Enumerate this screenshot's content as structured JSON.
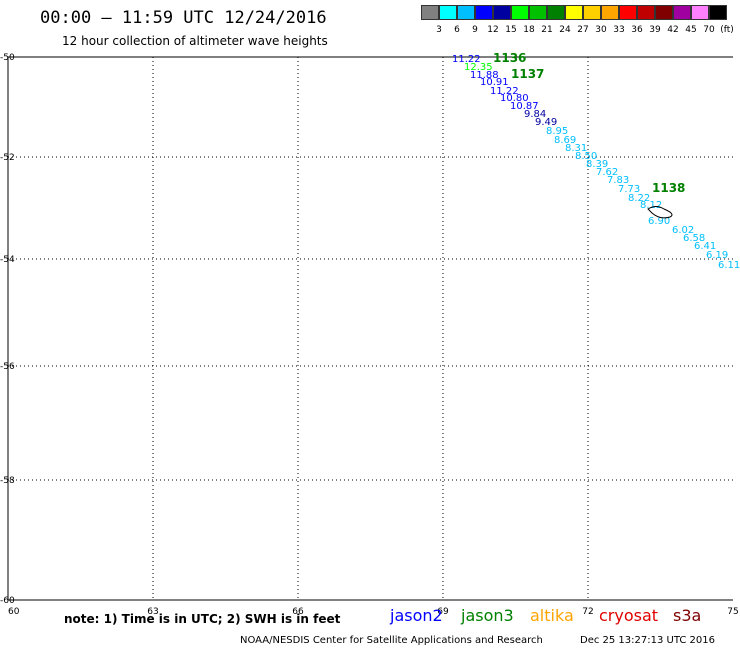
{
  "header": {
    "title": "00:00 – 11:59 UTC 12/24/2016",
    "subtitle": "12 hour collection of altimeter wave heights"
  },
  "scale": {
    "colors": [
      "#808080",
      "#00ffff",
      "#00bfff",
      "#0000ff",
      "#0000a0",
      "#00ff00",
      "#00c000",
      "#008000",
      "#ffff00",
      "#ffd000",
      "#ffa500",
      "#ff0000",
      "#c00000",
      "#800000",
      "#a000a0",
      "#ff80ff",
      "#000000"
    ],
    "labels": [
      "3",
      "6",
      "9",
      "12",
      "15",
      "18",
      "21",
      "24",
      "27",
      "30",
      "33",
      "36",
      "39",
      "42",
      "45",
      "70",
      "(ft)"
    ]
  },
  "axes": {
    "lon_labels": [
      "60",
      "63",
      "66",
      "69",
      "72",
      "75"
    ],
    "lat_labels": [
      "-50",
      "-52",
      "-54",
      "-56",
      "-58",
      "-60"
    ]
  },
  "tracks": {
    "pass_labels": [
      {
        "text": "1136",
        "color": "#008000"
      },
      {
        "text": "1137",
        "color": "#008000"
      },
      {
        "text": "1138",
        "color": "#008000"
      }
    ],
    "points": [
      {
        "v": "11.22",
        "c": "#0000ff"
      },
      {
        "v": "12.35",
        "c": "#00ff00"
      },
      {
        "v": "11.88",
        "c": "#0000ff"
      },
      {
        "v": "10.91",
        "c": "#0000ff"
      },
      {
        "v": "11.22",
        "c": "#0000ff"
      },
      {
        "v": "10.80",
        "c": "#0000ff"
      },
      {
        "v": "10.87",
        "c": "#0000ff"
      },
      {
        "v": "9.84",
        "c": "#0000a0"
      },
      {
        "v": "9.49",
        "c": "#0000a0"
      },
      {
        "v": "8.95",
        "c": "#00bfff"
      },
      {
        "v": "8.69",
        "c": "#00bfff"
      },
      {
        "v": "8.31",
        "c": "#00bfff"
      },
      {
        "v": "8.50",
        "c": "#00bfff"
      },
      {
        "v": "8.39",
        "c": "#00bfff"
      },
      {
        "v": "7.62",
        "c": "#00bfff"
      },
      {
        "v": "7.83",
        "c": "#00bfff"
      },
      {
        "v": "7.73",
        "c": "#00bfff"
      },
      {
        "v": "8.22",
        "c": "#00bfff"
      },
      {
        "v": "8.12",
        "c": "#00bfff"
      },
      {
        "v": "6.90",
        "c": "#00bfff"
      },
      {
        "v": "6.02",
        "c": "#00bfff"
      },
      {
        "v": "6.58",
        "c": "#00bfff"
      },
      {
        "v": "6.41",
        "c": "#00bfff"
      },
      {
        "v": "6.19",
        "c": "#00bfff"
      },
      {
        "v": "6.11",
        "c": "#00bfff"
      }
    ]
  },
  "footer": {
    "note": "note: 1) Time is in UTC; 2) SWH is in feet",
    "satellites": [
      {
        "name": "jason2",
        "color": "#0000ff"
      },
      {
        "name": "jason3",
        "color": "#008000"
      },
      {
        "name": "altika",
        "color": "#ffa500"
      },
      {
        "name": "cryosat",
        "color": "#e00000"
      },
      {
        "name": "s3a",
        "color": "#800000"
      }
    ],
    "credit": "NOAA/NESDIS Center for Satellite Applications and Research",
    "timestamp": "Dec 25 13:27:13 UTC 2016"
  }
}
